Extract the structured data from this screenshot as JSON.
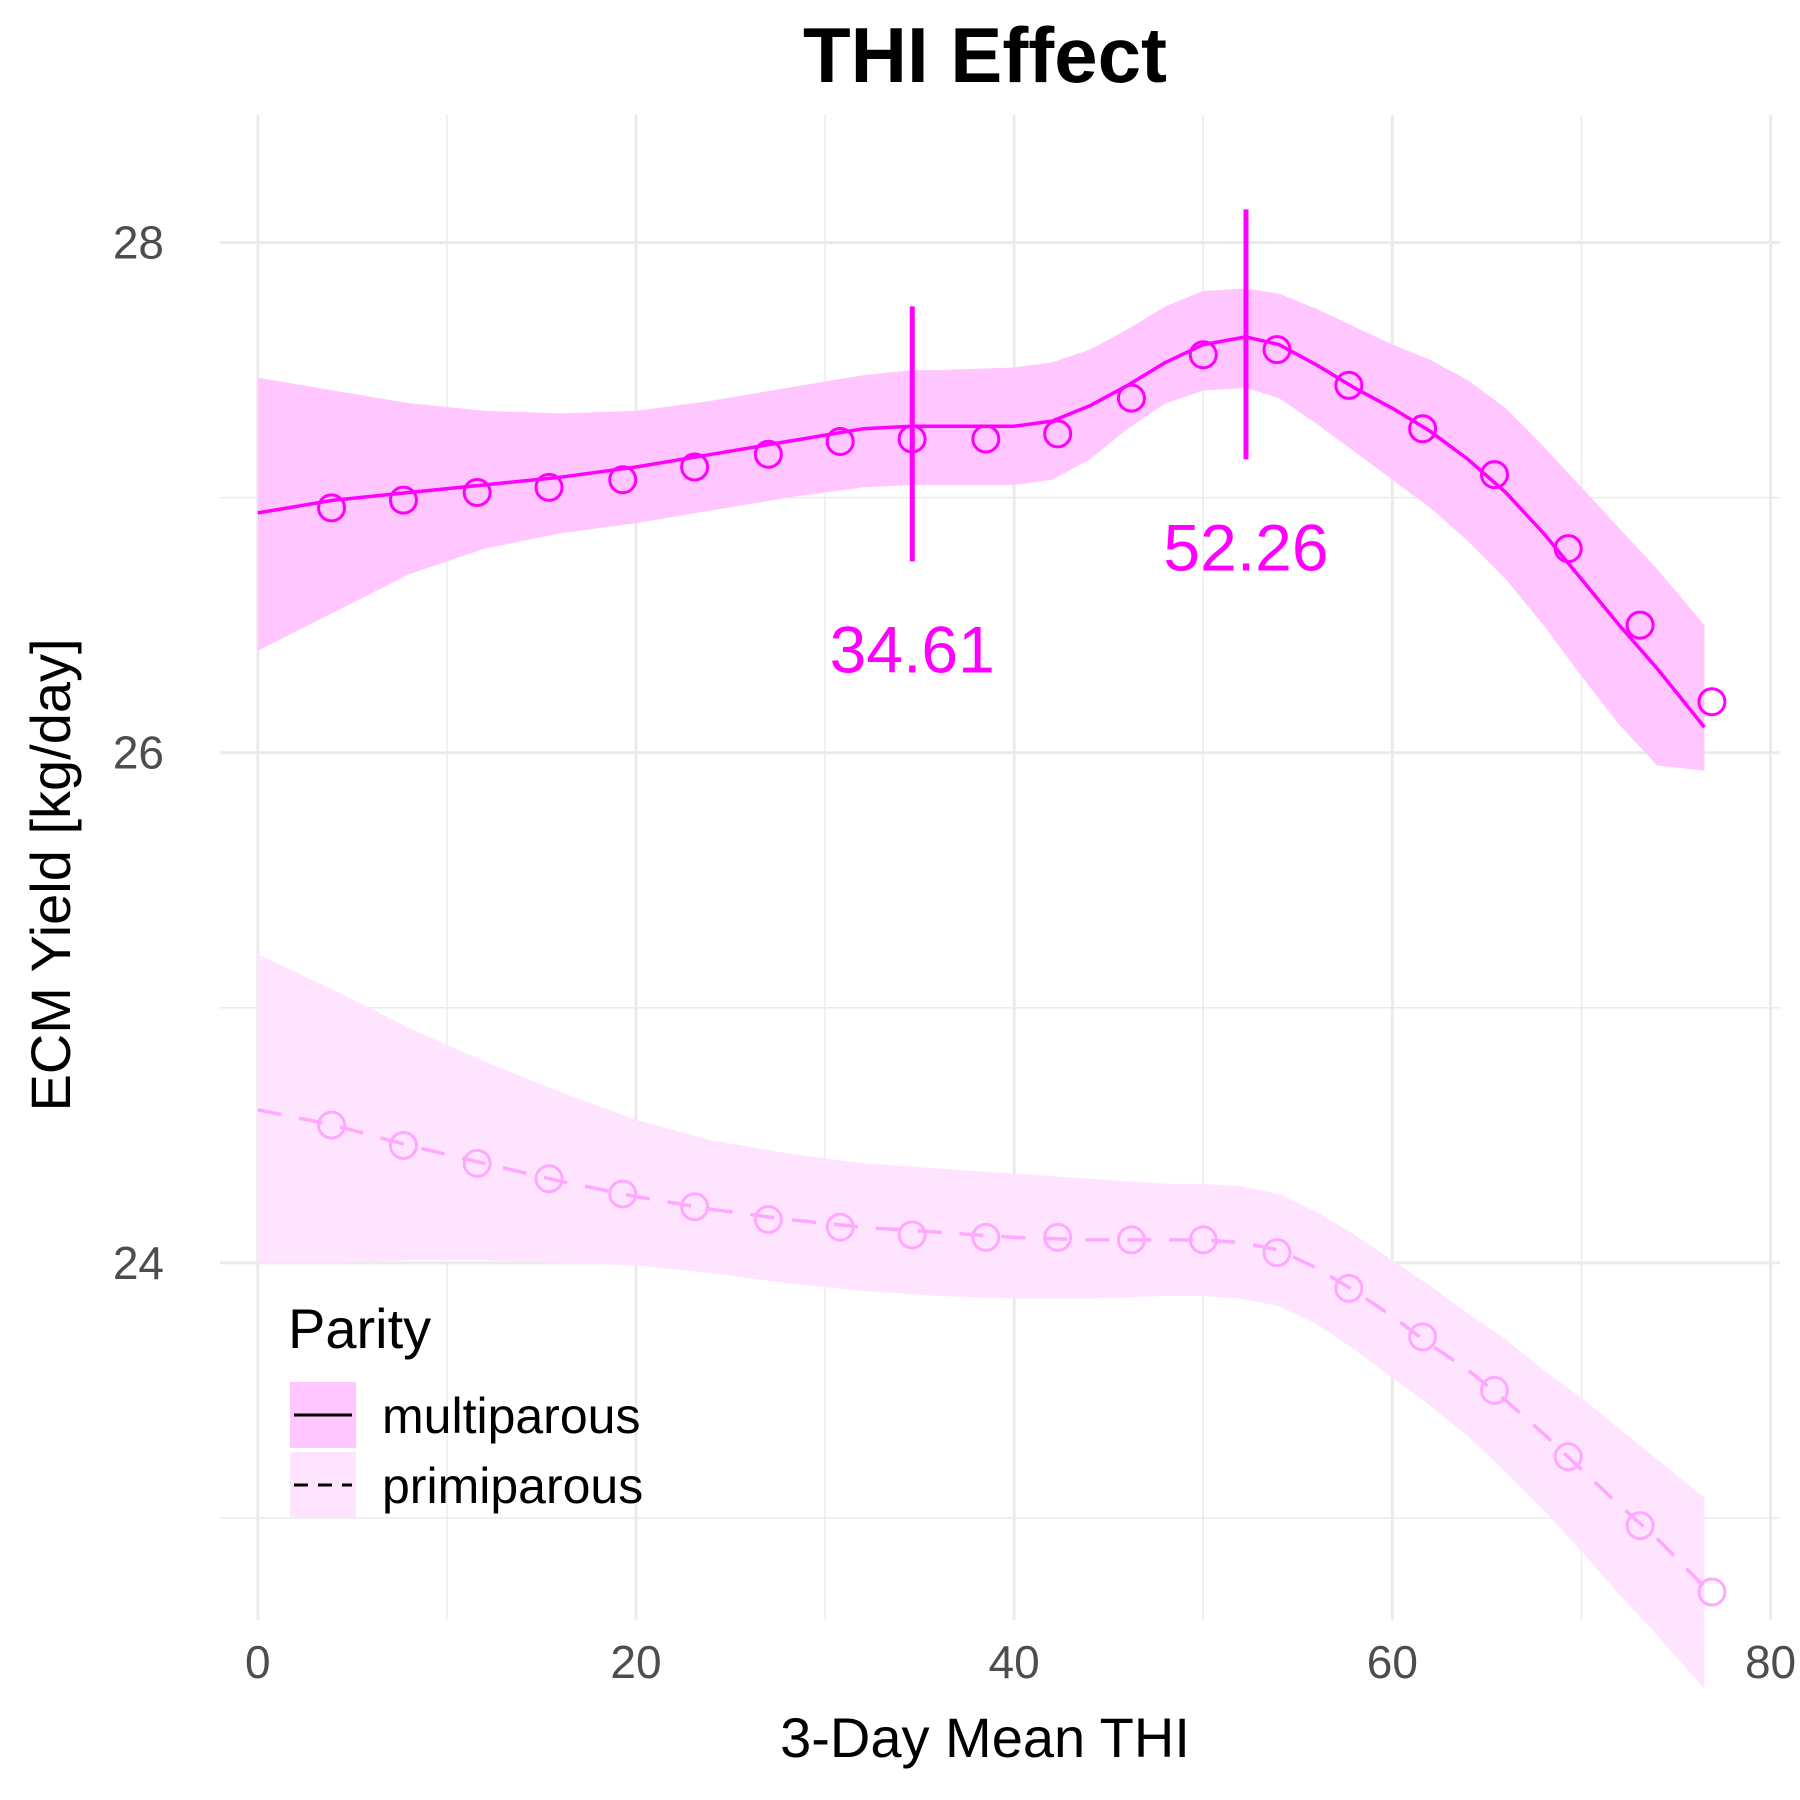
{
  "chart_data": {
    "type": "line",
    "title": "THI Effect",
    "xlabel": "3-Day Mean THI",
    "ylabel": "ECM Yield [kg/day]",
    "xlim": [
      -2,
      80.5
    ],
    "ylim": [
      22.6,
      28.5
    ],
    "x_ticks": [
      0,
      20,
      40,
      60,
      80
    ],
    "y_ticks": [
      24,
      26,
      28
    ],
    "x_minor_ticks": [
      10,
      30,
      50,
      70
    ],
    "y_minor_ticks": [
      23,
      25,
      27
    ],
    "grid": true,
    "legend": {
      "title": "Parity",
      "placement": "bottom-left inside plot"
    },
    "colors": {
      "multiparous_line": "#ff00ff",
      "multiparous_band": "#ffc6ff",
      "primiparous_line": "#ffa8ff",
      "primiparous_band": "#ffe4ff",
      "grid": "#ebebeb"
    },
    "series": [
      {
        "name": "multiparous",
        "linetype": "solid",
        "line_x": [
          0,
          4,
          8,
          12,
          16,
          20,
          24,
          28,
          32,
          34.61,
          36,
          40,
          42,
          44,
          46,
          48,
          50,
          52.26,
          54,
          56,
          58,
          60,
          62,
          64,
          66,
          68,
          70,
          72,
          74,
          76.5
        ],
        "line_y": [
          26.94,
          26.99,
          27.02,
          27.05,
          27.08,
          27.12,
          27.17,
          27.22,
          27.27,
          27.28,
          27.28,
          27.28,
          27.3,
          27.36,
          27.44,
          27.53,
          27.6,
          27.63,
          27.6,
          27.52,
          27.43,
          27.35,
          27.26,
          27.15,
          27.02,
          26.86,
          26.68,
          26.5,
          26.33,
          26.1
        ],
        "lower": [
          26.4,
          26.55,
          26.7,
          26.8,
          26.86,
          26.9,
          26.95,
          27.0,
          27.04,
          27.05,
          27.05,
          27.05,
          27.07,
          27.15,
          27.27,
          27.37,
          27.42,
          27.43,
          27.39,
          27.29,
          27.18,
          27.07,
          26.96,
          26.83,
          26.68,
          26.5,
          26.3,
          26.11,
          25.95,
          25.93
        ],
        "upper": [
          27.47,
          27.42,
          27.37,
          27.34,
          27.33,
          27.34,
          27.38,
          27.43,
          27.48,
          27.5,
          27.5,
          27.51,
          27.53,
          27.58,
          27.66,
          27.75,
          27.81,
          27.82,
          27.8,
          27.74,
          27.67,
          27.6,
          27.54,
          27.46,
          27.35,
          27.2,
          27.04,
          26.88,
          26.72,
          26.5
        ],
        "points_x": [
          3.9,
          7.7,
          11.6,
          15.4,
          19.3,
          23.1,
          27.0,
          30.8,
          34.6,
          38.5,
          42.3,
          46.2,
          50.0,
          53.9,
          57.7,
          61.6,
          65.4,
          69.3,
          73.1,
          76.9
        ],
        "points_y": [
          26.96,
          26.99,
          27.02,
          27.04,
          27.07,
          27.12,
          27.17,
          27.22,
          27.23,
          27.23,
          27.25,
          27.39,
          27.56,
          27.58,
          27.44,
          27.27,
          27.09,
          26.8,
          26.5,
          26.2
        ]
      },
      {
        "name": "primiparous",
        "linetype": "dashed",
        "line_x": [
          0,
          4,
          8,
          12,
          16,
          20,
          24,
          28,
          32,
          36,
          40,
          44,
          48,
          50,
          52,
          54,
          56,
          58,
          60,
          62,
          64,
          66,
          68,
          70,
          72,
          74,
          76.5
        ],
        "line_y": [
          24.6,
          24.54,
          24.46,
          24.39,
          24.32,
          24.26,
          24.21,
          24.17,
          24.14,
          24.12,
          24.1,
          24.09,
          24.09,
          24.09,
          24.08,
          24.05,
          23.98,
          23.89,
          23.79,
          23.68,
          23.58,
          23.46,
          23.33,
          23.19,
          23.05,
          22.92,
          22.73
        ],
        "lower": [
          24.0,
          24.0,
          24.01,
          24.01,
          24.0,
          23.99,
          23.96,
          23.92,
          23.89,
          23.87,
          23.86,
          23.86,
          23.87,
          23.87,
          23.86,
          23.83,
          23.76,
          23.66,
          23.55,
          23.44,
          23.32,
          23.18,
          23.03,
          22.87,
          22.7,
          22.54,
          22.33
        ],
        "upper": [
          25.21,
          25.07,
          24.92,
          24.79,
          24.67,
          24.56,
          24.48,
          24.43,
          24.39,
          24.37,
          24.35,
          24.33,
          24.31,
          24.31,
          24.3,
          24.27,
          24.2,
          24.11,
          24.01,
          23.91,
          23.8,
          23.7,
          23.58,
          23.47,
          23.35,
          23.23,
          23.08
        ],
        "points_x": [
          3.9,
          7.7,
          11.6,
          15.4,
          19.3,
          23.1,
          27.0,
          30.8,
          34.6,
          38.5,
          42.3,
          46.2,
          50.0,
          53.9,
          57.7,
          61.6,
          65.4,
          69.3,
          73.1,
          76.9
        ],
        "points_y": [
          24.54,
          24.46,
          24.39,
          24.33,
          24.27,
          24.22,
          24.17,
          24.14,
          24.11,
          24.1,
          24.1,
          24.09,
          24.09,
          24.04,
          23.9,
          23.71,
          23.5,
          23.24,
          22.97,
          22.71
        ]
      }
    ],
    "annotations": [
      {
        "label": "34.61",
        "x": 34.61,
        "segment_y": [
          26.75,
          27.75
        ],
        "label_y": 26.4
      },
      {
        "label": "52.26",
        "x": 52.26,
        "segment_y": [
          27.15,
          28.13
        ],
        "label_y": 26.8
      }
    ]
  }
}
